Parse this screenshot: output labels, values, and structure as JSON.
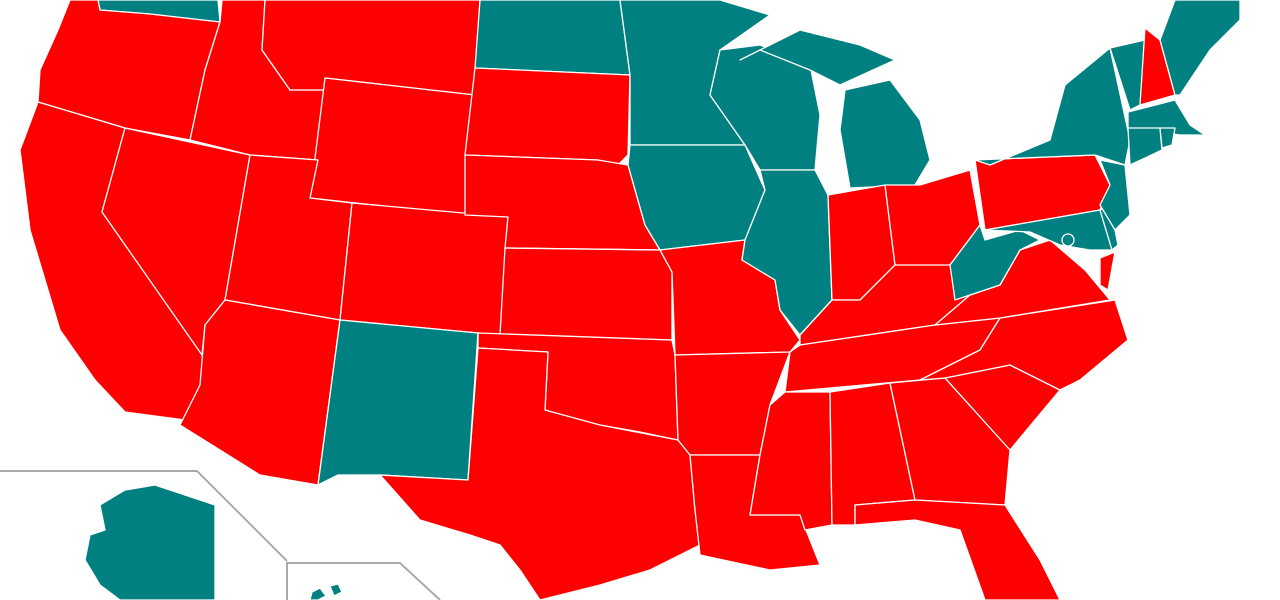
{
  "colors": {
    "red": "#ff0000",
    "teal": "#008080",
    "border": "#ffffff",
    "inset_frame": "#aaaaaa",
    "background": "#ffffff"
  },
  "map": {
    "regions": [
      {
        "id": "WA",
        "fill": "teal"
      },
      {
        "id": "OR",
        "fill": "red"
      },
      {
        "id": "CA",
        "fill": "red"
      },
      {
        "id": "NV",
        "fill": "red"
      },
      {
        "id": "ID",
        "fill": "red"
      },
      {
        "id": "MT",
        "fill": "red"
      },
      {
        "id": "WY",
        "fill": "red"
      },
      {
        "id": "UT",
        "fill": "red"
      },
      {
        "id": "AZ",
        "fill": "red"
      },
      {
        "id": "CO",
        "fill": "red"
      },
      {
        "id": "NM",
        "fill": "teal"
      },
      {
        "id": "ND",
        "fill": "teal"
      },
      {
        "id": "SD",
        "fill": "red"
      },
      {
        "id": "NE",
        "fill": "red"
      },
      {
        "id": "KS",
        "fill": "red"
      },
      {
        "id": "OK",
        "fill": "red"
      },
      {
        "id": "TX",
        "fill": "red"
      },
      {
        "id": "MN",
        "fill": "teal"
      },
      {
        "id": "IA",
        "fill": "teal"
      },
      {
        "id": "MO",
        "fill": "red"
      },
      {
        "id": "AR",
        "fill": "red"
      },
      {
        "id": "LA",
        "fill": "red"
      },
      {
        "id": "WI",
        "fill": "teal"
      },
      {
        "id": "IL",
        "fill": "teal"
      },
      {
        "id": "MI",
        "fill": "teal"
      },
      {
        "id": "IN",
        "fill": "red"
      },
      {
        "id": "OH",
        "fill": "red"
      },
      {
        "id": "KY",
        "fill": "red"
      },
      {
        "id": "TN",
        "fill": "red"
      },
      {
        "id": "MS",
        "fill": "red"
      },
      {
        "id": "AL",
        "fill": "red"
      },
      {
        "id": "GA",
        "fill": "red"
      },
      {
        "id": "FL",
        "fill": "red"
      },
      {
        "id": "SC",
        "fill": "red"
      },
      {
        "id": "NC",
        "fill": "red"
      },
      {
        "id": "VA",
        "fill": "red"
      },
      {
        "id": "WV",
        "fill": "teal"
      },
      {
        "id": "PA",
        "fill": "red"
      },
      {
        "id": "NY",
        "fill": "teal"
      },
      {
        "id": "MD",
        "fill": "teal"
      },
      {
        "id": "DE",
        "fill": "teal"
      },
      {
        "id": "NJ",
        "fill": "teal"
      },
      {
        "id": "VT",
        "fill": "teal"
      },
      {
        "id": "NH",
        "fill": "red"
      },
      {
        "id": "ME",
        "fill": "teal"
      },
      {
        "id": "MA",
        "fill": "teal"
      },
      {
        "id": "CT",
        "fill": "teal"
      },
      {
        "id": "RI",
        "fill": "teal"
      },
      {
        "id": "DC",
        "fill": "teal"
      },
      {
        "id": "AK",
        "fill": "teal"
      },
      {
        "id": "HI",
        "fill": "teal"
      }
    ]
  }
}
